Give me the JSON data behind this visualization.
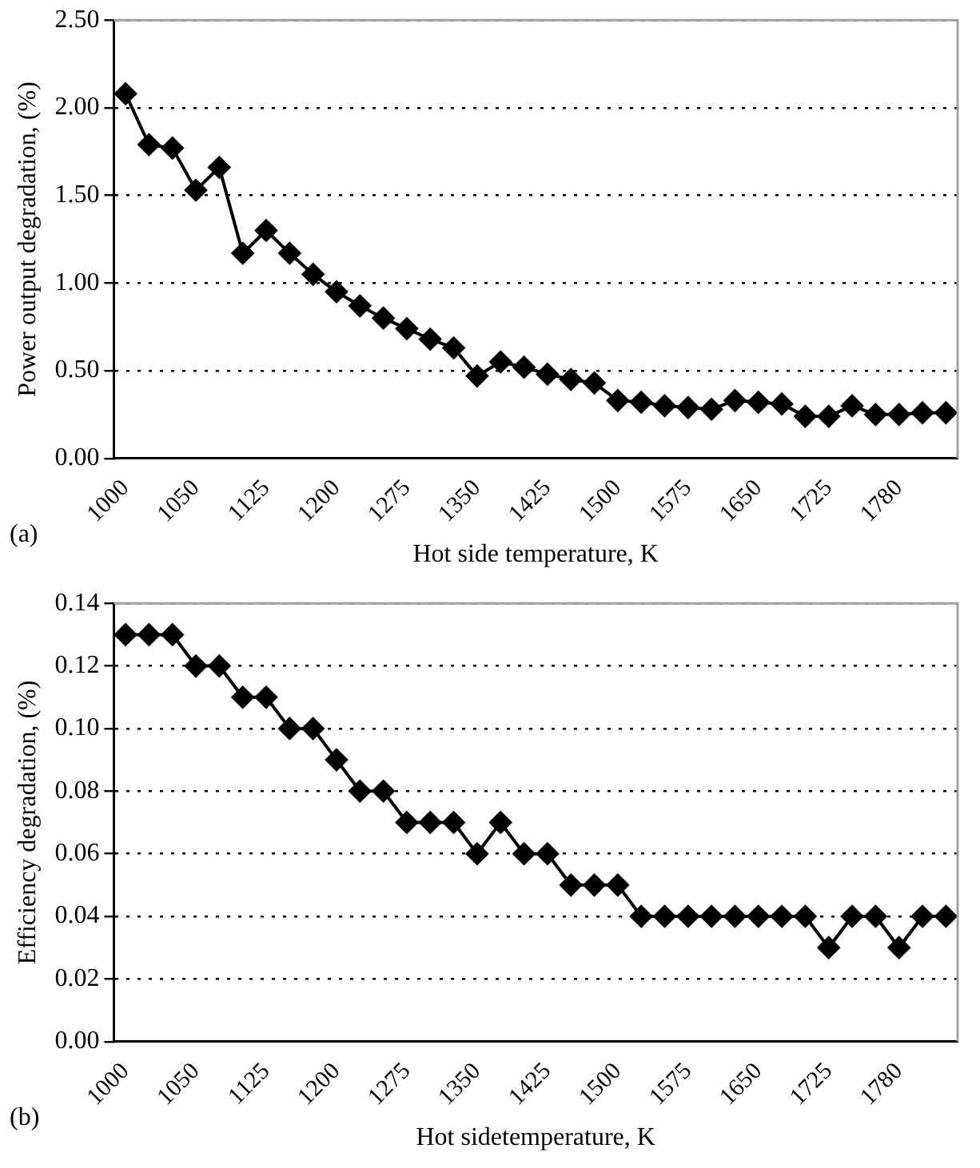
{
  "chart_data": [
    {
      "type": "line",
      "xlabel": "Hot side temperature, K",
      "ylabel": "Power output degradation, (%)",
      "annotations": [
        "(a)"
      ],
      "categories": [
        "1000",
        null,
        null,
        "1050",
        null,
        null,
        "1125",
        null,
        null,
        "1200",
        null,
        null,
        "1275",
        null,
        null,
        "1350",
        null,
        null,
        "1425",
        null,
        null,
        "1500",
        null,
        null,
        "1575",
        null,
        null,
        "1650",
        null,
        null,
        "1725",
        null,
        null,
        "1780",
        null,
        null
      ],
      "series": [
        {
          "color": "#000000",
          "values": [
            2.08,
            1.79,
            1.77,
            1.53,
            1.66,
            1.17,
            1.3,
            1.17,
            1.05,
            0.95,
            0.87,
            0.8,
            0.74,
            0.68,
            0.63,
            0.47,
            0.55,
            0.52,
            0.48,
            0.45,
            0.43,
            0.33,
            0.32,
            0.3,
            0.29,
            0.28,
            0.33,
            0.32,
            0.31,
            0.24,
            0.24,
            0.3,
            0.25,
            0.25,
            0.26,
            0.26
          ]
        }
      ],
      "ylim": [
        0,
        2.5
      ],
      "yticks": [
        {
          "value": 0,
          "label": "0.00"
        },
        {
          "value": 0.5,
          "label": "0.50"
        },
        {
          "value": 1,
          "label": "1.00"
        },
        {
          "value": 1.5,
          "label": "1.50"
        },
        {
          "value": 2,
          "label": "2.00"
        },
        {
          "value": 2.5,
          "label": "2.50"
        }
      ],
      "grid": "y",
      "marker": "diamond",
      "line_style": "solid",
      "legend": false
    },
    {
      "type": "line",
      "xlabel": "Hot sidetemperature, K",
      "ylabel": "Efficiency degradation, (%)",
      "annotations": [
        "(b)"
      ],
      "categories": [
        "1000",
        null,
        null,
        "1050",
        null,
        null,
        "1125",
        null,
        null,
        "1200",
        null,
        null,
        "1275",
        null,
        null,
        "1350",
        null,
        null,
        "1425",
        null,
        null,
        "1500",
        null,
        null,
        "1575",
        null,
        null,
        "1650",
        null,
        null,
        "1725",
        null,
        null,
        "1780",
        null,
        null
      ],
      "series": [
        {
          "color": "#000000",
          "values": [
            0.13,
            0.13,
            0.13,
            0.12,
            0.12,
            0.11,
            0.11,
            0.1,
            0.1,
            0.09,
            0.08,
            0.08,
            0.07,
            0.07,
            0.07,
            0.06,
            0.07,
            0.06,
            0.06,
            0.05,
            0.05,
            0.05,
            0.04,
            0.04,
            0.04,
            0.04,
            0.04,
            0.04,
            0.04,
            0.04,
            0.03,
            0.04,
            0.04,
            0.03,
            0.04,
            0.04
          ]
        }
      ],
      "ylim": [
        0,
        0.14
      ],
      "yticks": [
        {
          "value": 0,
          "label": "0.00"
        },
        {
          "value": 0.02,
          "label": "0.02"
        },
        {
          "value": 0.04,
          "label": "0.04"
        },
        {
          "value": 0.06,
          "label": "0.06"
        },
        {
          "value": 0.08,
          "label": "0.08"
        },
        {
          "value": 0.1,
          "label": "0.10"
        },
        {
          "value": 0.12,
          "label": "0.12"
        },
        {
          "value": 0.14,
          "label": "0.14"
        }
      ],
      "grid": "y",
      "marker": "diamond",
      "line_style": "solid",
      "legend": false
    }
  ]
}
